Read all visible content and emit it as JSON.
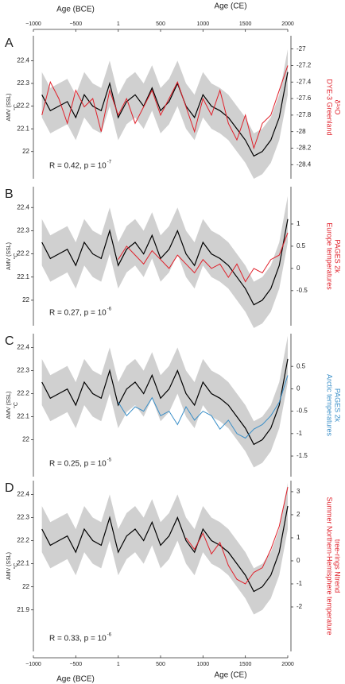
{
  "chart_data": [
    {
      "type": "line",
      "letter": "A",
      "ylabel": "AMV (SSL)",
      "yunit": "°C",
      "annotation": "R = 0.42, p = 10",
      "annotation_exp": "-7",
      "y2label": [
        "DYE-3 Greenland",
        "δ¹⁸O"
      ],
      "xlim": [
        -1000,
        2000
      ],
      "xticks": [
        {
          "value": -1000,
          "label": "−1000"
        },
        {
          "value": -500,
          "label": "−500"
        },
        1,
        500,
        1000,
        1500,
        2000
      ],
      "xlabels": [
        "Age (BCE)",
        "Age (CE)"
      ],
      "xaxis_position": "top",
      "ylim": [
        21.88,
        22.51
      ],
      "yticks": [
        22,
        22.1,
        22.2,
        22.3,
        22.4
      ],
      "y2lim": [
        -28.57,
        -26.84
      ],
      "y2ticks": [
        -28.4,
        -28.2,
        -28,
        -27.8,
        -27.6,
        -27.4,
        -27.2,
        -27
      ],
      "x": [
        -900,
        -800,
        -700,
        -600,
        -500,
        -400,
        -300,
        -200,
        -100,
        0,
        100,
        200,
        300,
        400,
        500,
        600,
        700,
        800,
        900,
        1000,
        1100,
        1200,
        1300,
        1400,
        1500,
        1600,
        1700,
        1800,
        1900,
        2000
      ],
      "band": {
        "color": "#d0d0d0",
        "lower": [
          22.15,
          22.08,
          22.1,
          22.12,
          22.05,
          22.15,
          22.1,
          22.08,
          22.2,
          22.05,
          22.12,
          22.15,
          22.1,
          22.18,
          22.08,
          22.12,
          22.2,
          22.1,
          22.05,
          22.15,
          22.1,
          22.08,
          22.05,
          22.0,
          21.95,
          21.88,
          21.9,
          21.95,
          22.05,
          22.25
        ],
        "upper": [
          22.35,
          22.28,
          22.3,
          22.32,
          22.25,
          22.35,
          22.3,
          22.28,
          22.4,
          22.25,
          22.32,
          22.35,
          22.3,
          22.38,
          22.28,
          22.32,
          22.4,
          22.3,
          22.25,
          22.35,
          22.3,
          22.28,
          22.25,
          22.2,
          22.15,
          22.08,
          22.1,
          22.15,
          22.25,
          22.45
        ]
      },
      "series": [
        {
          "name": "AMV",
          "color": "#000000",
          "values": [
            22.25,
            22.18,
            22.2,
            22.22,
            22.15,
            22.25,
            22.2,
            22.18,
            22.3,
            22.15,
            22.22,
            22.25,
            22.2,
            22.28,
            22.18,
            22.22,
            22.3,
            22.2,
            22.15,
            22.25,
            22.2,
            22.18,
            22.15,
            22.1,
            22.05,
            21.98,
            22.0,
            22.05,
            22.15,
            22.35
          ]
        },
        {
          "name": "DYE-3 Greenland",
          "color": "#e0202a",
          "axis": "y2",
          "values": [
            -27.8,
            -27.4,
            -27.6,
            -27.9,
            -27.5,
            -27.7,
            -27.6,
            -28.0,
            -27.5,
            -27.8,
            -27.6,
            -27.9,
            -27.7,
            -27.5,
            -27.8,
            -27.6,
            -27.4,
            -27.7,
            -28.0,
            -27.6,
            -27.8,
            -27.5,
            -27.9,
            -28.1,
            -27.8,
            -28.2,
            -27.9,
            -27.8,
            -27.5,
            -27.2
          ]
        }
      ]
    },
    {
      "type": "line",
      "letter": "B",
      "ylabel": "AMV (SSL)",
      "yunit": "°C",
      "annotation": "R = 0.27, p = 10",
      "annotation_exp": "-6",
      "y2label": [
        "Europe temperatures",
        "PAGES 2k"
      ],
      "xlim": [
        -1000,
        2000
      ],
      "ylim": [
        21.89,
        22.49
      ],
      "yticks": [
        22,
        22.1,
        22.2,
        22.3,
        22.4
      ],
      "y2lim": [
        -1.29,
        1.84
      ],
      "y2ticks": [
        -0.5,
        0,
        0.5,
        1
      ],
      "x": [
        -900,
        -800,
        -700,
        -600,
        -500,
        -400,
        -300,
        -200,
        -100,
        0,
        100,
        200,
        300,
        400,
        500,
        600,
        700,
        800,
        900,
        1000,
        1100,
        1200,
        1300,
        1400,
        1500,
        1600,
        1700,
        1800,
        1900,
        2000
      ],
      "band": {
        "color": "#d0d0d0",
        "lower": [
          22.15,
          22.08,
          22.1,
          22.12,
          22.05,
          22.15,
          22.1,
          22.08,
          22.2,
          22.05,
          22.12,
          22.15,
          22.1,
          22.18,
          22.08,
          22.12,
          22.2,
          22.1,
          22.05,
          22.15,
          22.1,
          22.08,
          22.05,
          22.0,
          21.95,
          21.88,
          21.9,
          21.95,
          22.05,
          22.25
        ],
        "upper": [
          22.35,
          22.28,
          22.3,
          22.32,
          22.25,
          22.35,
          22.3,
          22.28,
          22.4,
          22.25,
          22.32,
          22.35,
          22.3,
          22.38,
          22.28,
          22.32,
          22.4,
          22.3,
          22.25,
          22.35,
          22.3,
          22.28,
          22.25,
          22.2,
          22.15,
          22.08,
          22.1,
          22.15,
          22.25,
          22.45
        ]
      },
      "series": [
        {
          "name": "AMV",
          "color": "#000000",
          "values": [
            22.25,
            22.18,
            22.2,
            22.22,
            22.15,
            22.25,
            22.2,
            22.18,
            22.3,
            22.15,
            22.22,
            22.25,
            22.2,
            22.28,
            22.18,
            22.22,
            22.3,
            22.2,
            22.15,
            22.25,
            22.2,
            22.18,
            22.15,
            22.1,
            22.05,
            21.98,
            22.0,
            22.05,
            22.15,
            22.35
          ]
        },
        {
          "name": "Europe temperatures",
          "color": "#e0202a",
          "axis": "y2",
          "values": [
            null,
            null,
            null,
            null,
            null,
            null,
            null,
            null,
            null,
            0.2,
            0.5,
            0.3,
            0.1,
            0.4,
            0.2,
            0.0,
            0.3,
            0.1,
            -0.1,
            0.2,
            0.0,
            0.1,
            -0.2,
            0.1,
            -0.3,
            0.0,
            -0.1,
            0.2,
            0.3,
            0.8
          ]
        }
      ]
    },
    {
      "type": "line",
      "letter": "C",
      "ylabel": "AMV (SSL)",
      "yunit": "°C",
      "annotation": "R = 0.25, p = 10",
      "annotation_exp": "-5",
      "y2label": [
        "Arctic temperatures",
        "PAGES 2k"
      ],
      "xlim": [
        -1000,
        2000
      ],
      "ylim": [
        21.84,
        22.46
      ],
      "yticks": [
        22,
        22.1,
        22.2,
        22.3,
        22.4
      ],
      "y2lim": [
        -1.96,
        1.23
      ],
      "y2ticks": [
        -1.5,
        -1,
        -0.5,
        0,
        0.5
      ],
      "x": [
        -900,
        -800,
        -700,
        -600,
        -500,
        -400,
        -300,
        -200,
        -100,
        0,
        100,
        200,
        300,
        400,
        500,
        600,
        700,
        800,
        900,
        1000,
        1100,
        1200,
        1300,
        1400,
        1500,
        1600,
        1700,
        1800,
        1900,
        2000
      ],
      "band": {
        "color": "#d0d0d0",
        "lower": [
          22.15,
          22.08,
          22.1,
          22.12,
          22.05,
          22.15,
          22.1,
          22.08,
          22.2,
          22.05,
          22.12,
          22.15,
          22.1,
          22.18,
          22.08,
          22.12,
          22.2,
          22.1,
          22.05,
          22.15,
          22.1,
          22.08,
          22.05,
          22.0,
          21.95,
          21.88,
          21.9,
          21.95,
          22.05,
          22.25
        ],
        "upper": [
          22.35,
          22.28,
          22.3,
          22.32,
          22.25,
          22.35,
          22.3,
          22.28,
          22.4,
          22.25,
          22.32,
          22.35,
          22.3,
          22.38,
          22.28,
          22.32,
          22.4,
          22.3,
          22.25,
          22.35,
          22.3,
          22.28,
          22.25,
          22.2,
          22.15,
          22.08,
          22.1,
          22.15,
          22.25,
          22.45
        ]
      },
      "series": [
        {
          "name": "AMV",
          "color": "#000000",
          "values": [
            22.25,
            22.18,
            22.2,
            22.22,
            22.15,
            22.25,
            22.2,
            22.18,
            22.3,
            22.15,
            22.22,
            22.25,
            22.2,
            22.28,
            22.18,
            22.22,
            22.3,
            22.2,
            22.15,
            22.25,
            22.2,
            22.18,
            22.15,
            22.1,
            22.05,
            21.98,
            22.0,
            22.05,
            22.15,
            22.35
          ]
        },
        {
          "name": "Arctic temperatures",
          "color": "#3a8fc8",
          "axis": "y2",
          "values": [
            null,
            null,
            null,
            null,
            null,
            null,
            null,
            null,
            null,
            -0.3,
            -0.6,
            -0.4,
            -0.5,
            -0.2,
            -0.6,
            -0.5,
            -0.8,
            -0.4,
            -0.7,
            -0.5,
            -0.6,
            -0.9,
            -0.7,
            -1.0,
            -1.1,
            -0.9,
            -0.8,
            -0.6,
            -0.3,
            0.3
          ]
        }
      ]
    },
    {
      "type": "line",
      "letter": "D",
      "ylabel": "AMV (SSL)",
      "yunit": "°C",
      "annotation": "R = 0.33, p = 10",
      "annotation_exp": "-6",
      "y2label": [
        "Summer Northern-Hemisphere temperature",
        "tree-rings Ntrend"
      ],
      "xlim": [
        -1000,
        2000
      ],
      "xticks": [
        {
          "value": -1000,
          "label": "−1000"
        },
        {
          "value": -500,
          "label": "−500"
        },
        1,
        500,
        1000,
        1500,
        2000
      ],
      "xlabels": [
        "Age (BCE)",
        "Age (CE)"
      ],
      "xaxis_position": "bottom",
      "ylim": [
        21.72,
        22.46
      ],
      "yticks": [
        21.9,
        22,
        22.1,
        22.2,
        22.3,
        22.4
      ],
      "y2lim": [
        -3.93,
        3.48
      ],
      "y2ticks": [
        -2,
        -1,
        0,
        1,
        2,
        3
      ],
      "x": [
        -900,
        -800,
        -700,
        -600,
        -500,
        -400,
        -300,
        -200,
        -100,
        0,
        100,
        200,
        300,
        400,
        500,
        600,
        700,
        800,
        900,
        1000,
        1100,
        1200,
        1300,
        1400,
        1500,
        1600,
        1700,
        1800,
        1900,
        2000
      ],
      "band": {
        "color": "#d0d0d0",
        "lower": [
          22.15,
          22.08,
          22.1,
          22.12,
          22.05,
          22.15,
          22.1,
          22.08,
          22.2,
          22.05,
          22.12,
          22.15,
          22.1,
          22.18,
          22.08,
          22.12,
          22.2,
          22.1,
          22.05,
          22.15,
          22.1,
          22.08,
          22.05,
          22.0,
          21.95,
          21.88,
          21.9,
          21.95,
          22.05,
          22.25
        ],
        "upper": [
          22.35,
          22.28,
          22.3,
          22.32,
          22.25,
          22.35,
          22.3,
          22.28,
          22.4,
          22.25,
          22.32,
          22.35,
          22.3,
          22.38,
          22.28,
          22.32,
          22.4,
          22.3,
          22.25,
          22.35,
          22.3,
          22.28,
          22.25,
          22.2,
          22.15,
          22.08,
          22.1,
          22.15,
          22.25,
          22.45
        ]
      },
      "series": [
        {
          "name": "AMV",
          "color": "#000000",
          "values": [
            22.25,
            22.18,
            22.2,
            22.22,
            22.15,
            22.25,
            22.2,
            22.18,
            22.3,
            22.15,
            22.22,
            22.25,
            22.2,
            22.28,
            22.18,
            22.22,
            22.3,
            22.2,
            22.15,
            22.25,
            22.2,
            22.18,
            22.15,
            22.1,
            22.05,
            21.98,
            22.0,
            22.05,
            22.15,
            22.35
          ]
        },
        {
          "name": "Summer Northern-Hemisphere temperature",
          "color": "#e0202a",
          "axis": "y2",
          "values": [
            null,
            null,
            null,
            null,
            null,
            null,
            null,
            null,
            null,
            null,
            null,
            null,
            null,
            null,
            null,
            null,
            null,
            1.0,
            0.5,
            1.2,
            0.3,
            0.8,
            -0.2,
            -0.8,
            -1.0,
            -0.5,
            -0.3,
            0.5,
            1.5,
            3.2
          ]
        }
      ]
    }
  ]
}
